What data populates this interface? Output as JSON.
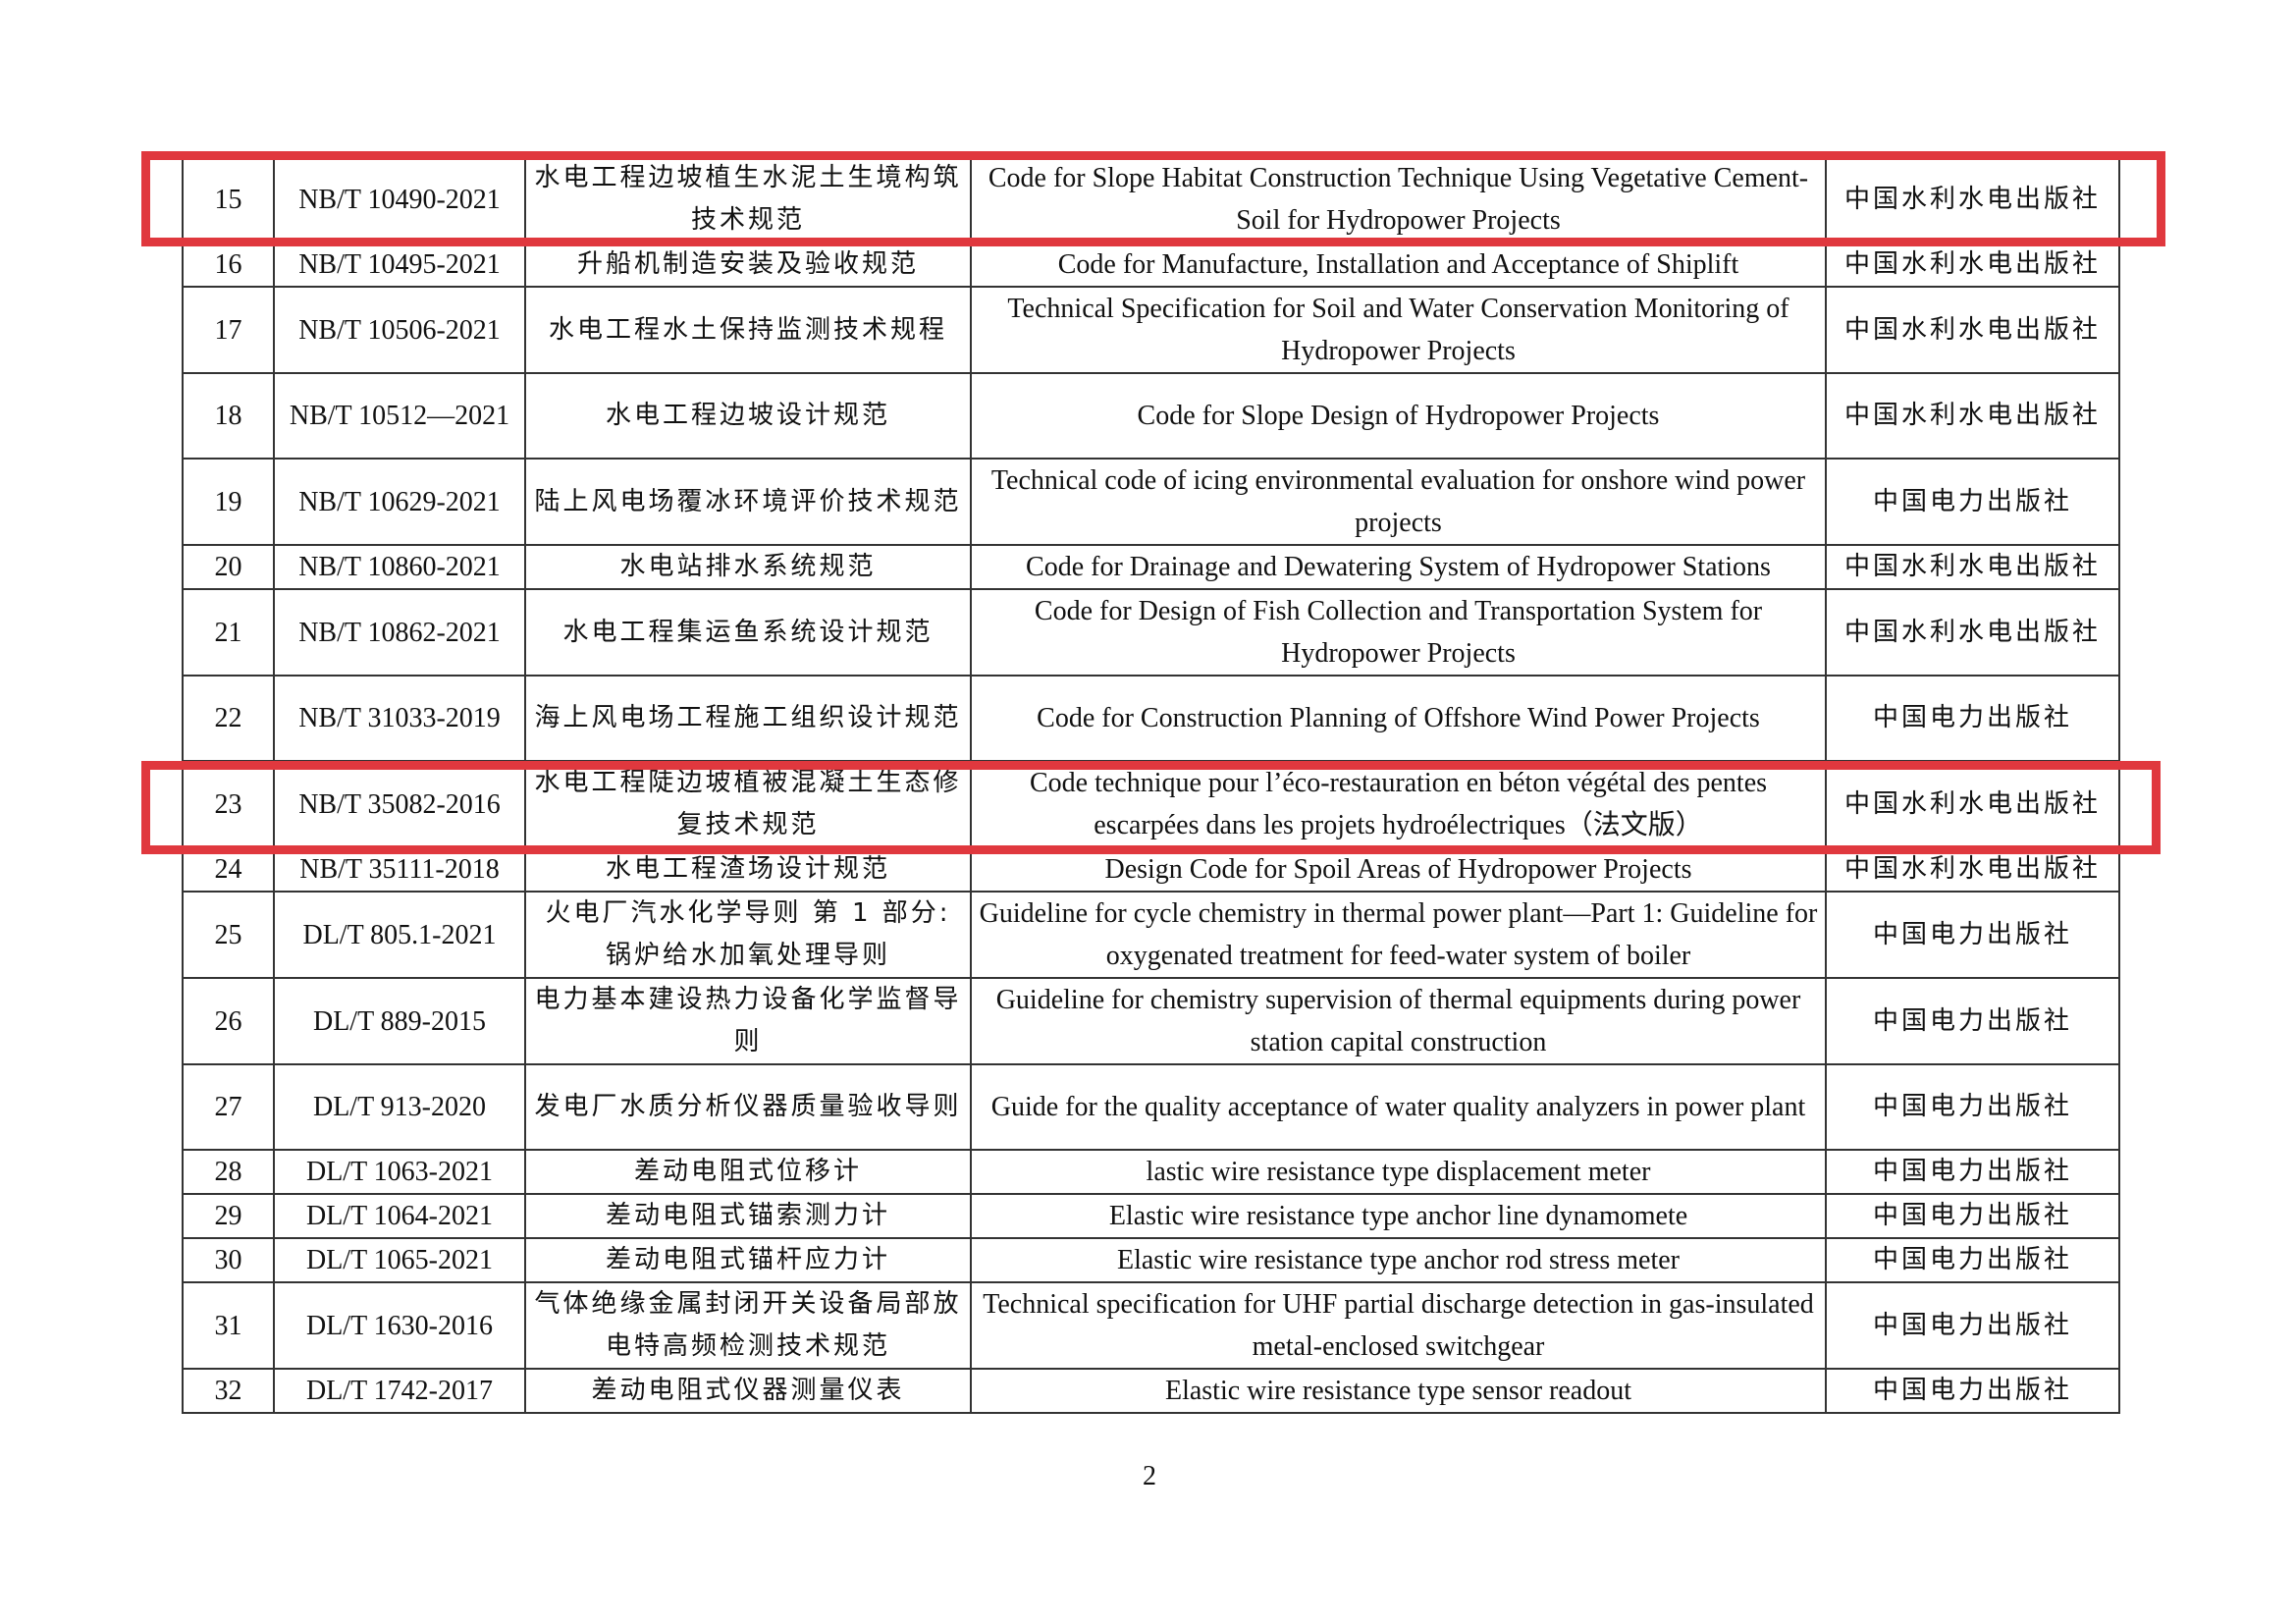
{
  "rows": [
    {
      "no": "15",
      "code": "NB/T 10490-2021",
      "zh": "水电工程边坡植生水泥土生境构筑技术规范",
      "en": "Code for Slope Habitat Construction Technique Using Vegetative Cement-Soil for Hydropower Projects",
      "publisher": "中国水利水电出版社",
      "lines": 2,
      "highlighted": true
    },
    {
      "no": "16",
      "code": "NB/T 10495-2021",
      "zh": "升船机制造安装及验收规范",
      "en": "Code for Manufacture, Installation and Acceptance of Shiplift",
      "publisher": "中国水利水电出版社",
      "lines": 1
    },
    {
      "no": "17",
      "code": "NB/T 10506-2021",
      "zh": "水电工程水土保持监测技术规程",
      "en": "Technical Specification for Soil and Water Conservation Monitoring of Hydropower Projects",
      "publisher": "中国水利水电出版社",
      "lines": 2
    },
    {
      "no": "18",
      "code": "NB/T 10512—2021",
      "zh": "水电工程边坡设计规范",
      "en": "Code for Slope Design of Hydropower Projects",
      "publisher": "中国水利水电出版社",
      "lines": 2
    },
    {
      "no": "19",
      "code": "NB/T 10629-2021",
      "zh": "陆上风电场覆冰环境评价技术规范",
      "en": "Technical code of icing environmental evaluation for onshore wind power projects",
      "publisher": "中国电力出版社",
      "lines": 2
    },
    {
      "no": "20",
      "code": "NB/T 10860-2021",
      "zh": "水电站排水系统规范",
      "en": "Code for Drainage and Dewatering System of Hydropower Stations",
      "publisher": "中国水利水电出版社",
      "lines": 1
    },
    {
      "no": "21",
      "code": "NB/T 10862-2021",
      "zh": "水电工程集运鱼系统设计规范",
      "en": "Code for Design of Fish Collection and Transportation System for Hydropower Projects",
      "publisher": "中国水利水电出版社",
      "lines": 2
    },
    {
      "no": "22",
      "code": "NB/T 31033-2019",
      "zh": "海上风电场工程施工组织设计规范",
      "en": "Code for Construction Planning of Offshore Wind Power Projects",
      "publisher": "中国电力出版社",
      "lines": 2
    },
    {
      "no": "23",
      "code": "NB/T 35082-2016",
      "zh": "水电工程陡边坡植被混凝土生态修复技术规范",
      "en": "Code technique pour l’éco-restauration en béton végétal des pentes escarpées dans les projets hydroélectriques（法文版）",
      "publisher": "中国水利水电出版社",
      "lines": 2,
      "highlighted": true
    },
    {
      "no": "24",
      "code": "NB/T 35111-2018",
      "zh": "水电工程渣场设计规范",
      "en": "Design Code for Spoil Areas of Hydropower Projects",
      "publisher": "中国水利水电出版社",
      "lines": 1
    },
    {
      "no": "25",
      "code": "DL/T 805.1-2021",
      "zh": "火电厂汽水化学导则 第 1 部分: 锅炉给水加氧处理导则",
      "en": "Guideline for cycle chemistry in thermal power plant—Part 1: Guideline for oxygenated treatment   for feed-water system of boiler",
      "publisher": "中国电力出版社",
      "lines": 2
    },
    {
      "no": "26",
      "code": "DL/T 889-2015",
      "zh": "电力基本建设热力设备化学监督导则",
      "en": "Guideline for chemistry supervision of thermal equipments during power station capital construction",
      "publisher": "中国电力出版社",
      "lines": 2
    },
    {
      "no": "27",
      "code": "DL/T 913-2020",
      "zh": "发电厂水质分析仪器质量验收导则",
      "en": "Guide for the quality acceptance of water quality analyzers in power plant",
      "publisher": "中国电力出版社",
      "lines": 2
    },
    {
      "no": "28",
      "code": "DL/T 1063-2021",
      "zh": "差动电阻式位移计",
      "en": "lastic wire resistance type displacement meter",
      "publisher": "中国电力出版社",
      "lines": 1
    },
    {
      "no": "29",
      "code": "DL/T 1064-2021",
      "zh": "差动电阻式锚索测力计",
      "en": "Elastic wire resistance type anchor line dynamomete",
      "publisher": "中国电力出版社",
      "lines": 1
    },
    {
      "no": "30",
      "code": "DL/T 1065-2021",
      "zh": "差动电阻式锚杆应力计",
      "en": "Elastic wire resistance type anchor rod stress meter",
      "publisher": "中国电力出版社",
      "lines": 1
    },
    {
      "no": "31",
      "code": "DL/T 1630-2016",
      "zh": "气体绝缘金属封闭开关设备局部放电特高频检测技术规范",
      "en": "Technical specification for UHF partial discharge detection in gas-insulated metal-enclosed switchgear",
      "publisher": "中国电力出版社",
      "lines": 2
    },
    {
      "no": "32",
      "code": "DL/T 1742-2017",
      "zh": "差动电阻式仪器测量仪表",
      "en": "Elastic wire resistance type sensor readout",
      "publisher": "中国电力出版社",
      "lines": 1
    }
  ],
  "highlight_color": "#e0383e",
  "page_number": "2"
}
